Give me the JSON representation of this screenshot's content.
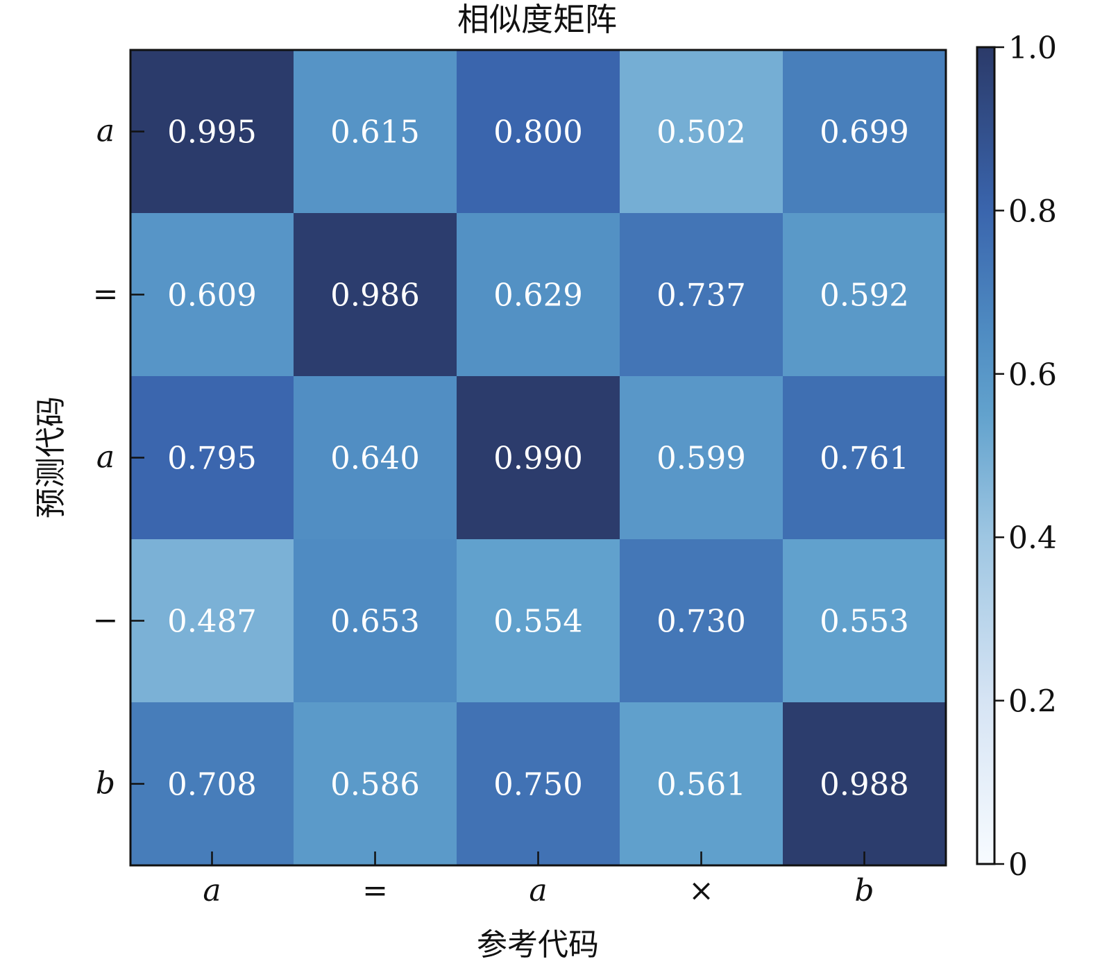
{
  "chart_data": {
    "type": "heatmap",
    "title": "相似度矩阵",
    "xlabel": "参考代码",
    "ylabel": "预测代码",
    "x_categories": [
      "a",
      "=",
      "a",
      "×",
      "b"
    ],
    "y_categories": [
      "a",
      "=",
      "a",
      "−",
      "b"
    ],
    "values": [
      [
        0.995,
        0.615,
        0.8,
        0.502,
        0.699
      ],
      [
        0.609,
        0.986,
        0.629,
        0.737,
        0.592
      ],
      [
        0.795,
        0.64,
        0.99,
        0.599,
        0.761
      ],
      [
        0.487,
        0.653,
        0.554,
        0.73,
        0.553
      ],
      [
        0.708,
        0.586,
        0.75,
        0.561,
        0.988
      ]
    ],
    "value_format": "0.000",
    "colorbar": {
      "range": [
        0,
        1.0
      ],
      "ticks": [
        0,
        0.2,
        0.4,
        0.6,
        0.8,
        1.0
      ],
      "tick_labels": [
        "0",
        "0.2",
        "0.4",
        "0.6",
        "0.8",
        "1.0"
      ]
    },
    "colors": {
      "cmap_low": "#f7fbff",
      "cmap_mid": "#6aaed6",
      "cmap_high": "#2b3a69",
      "cell_text": "#ffffff"
    }
  }
}
